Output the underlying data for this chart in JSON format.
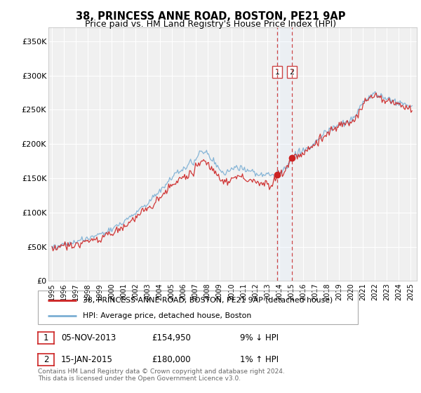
{
  "title": "38, PRINCESS ANNE ROAD, BOSTON, PE21 9AP",
  "subtitle": "Price paid vs. HM Land Registry's House Price Index (HPI)",
  "ylim": [
    0,
    370000
  ],
  "yticks": [
    0,
    50000,
    100000,
    150000,
    200000,
    250000,
    300000,
    350000
  ],
  "ytick_labels": [
    "£0",
    "£50K",
    "£100K",
    "£150K",
    "£200K",
    "£250K",
    "£300K",
    "£350K"
  ],
  "background_color": "#ffffff",
  "plot_bg_color": "#f0f0f0",
  "grid_color": "#ffffff",
  "hpi_color": "#7bafd4",
  "price_color": "#cc2222",
  "span_color": "#ddeeff",
  "annotation_line_color": "#cc4444",
  "legend_label_price": "38, PRINCESS ANNE ROAD, BOSTON, PE21 9AP (detached house)",
  "legend_label_hpi": "HPI: Average price, detached house, Boston",
  "transaction1_date": "05-NOV-2013",
  "transaction1_price": "£154,950",
  "transaction1_hpi": "9% ↓ HPI",
  "transaction2_date": "15-JAN-2015",
  "transaction2_price": "£180,000",
  "transaction2_hpi": "1% ↑ HPI",
  "footer": "Contains HM Land Registry data © Crown copyright and database right 2024.\nThis data is licensed under the Open Government Licence v3.0.",
  "transaction1_year": 2013.84,
  "transaction1_value": 154950,
  "transaction2_year": 2015.04,
  "transaction2_value": 180000,
  "xmin": 1995,
  "xmax": 2025.5,
  "noise_seed": 42
}
